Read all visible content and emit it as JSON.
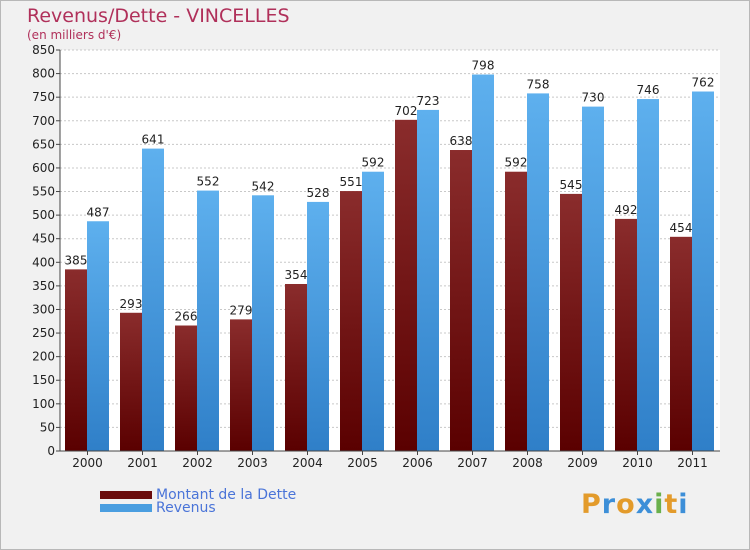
{
  "title": "Revenus/Dette - VINCELLES",
  "subtitle": "(en milliers d'€)",
  "colors": {
    "dette": "#6b0c0c",
    "revenus": "#4a9ee0",
    "title": "#b0305a",
    "legend_text": "#4a74d8"
  },
  "legend": {
    "dette_label": "Montant de la Dette",
    "revenus_label": "Revenus"
  },
  "logo": {
    "text": "Proxiti"
  },
  "chart_data": {
    "type": "bar",
    "title": "Revenus/Dette - VINCELLES",
    "subtitle": "(en milliers d'€)",
    "xlabel": "",
    "ylabel": "",
    "categories": [
      "2000",
      "2001",
      "2002",
      "2003",
      "2004",
      "2005",
      "2006",
      "2007",
      "2008",
      "2009",
      "2010",
      "2011"
    ],
    "series": [
      {
        "name": "Montant de la Dette",
        "values": [
          385,
          293,
          266,
          279,
          354,
          551,
          702,
          638,
          592,
          545,
          492,
          454
        ]
      },
      {
        "name": "Revenus",
        "values": [
          487,
          641,
          552,
          542,
          528,
          592,
          723,
          798,
          758,
          730,
          746,
          762
        ]
      }
    ],
    "ylim": [
      0,
      850
    ],
    "yticks": [
      0,
      50,
      100,
      150,
      200,
      250,
      300,
      350,
      400,
      450,
      500,
      550,
      600,
      650,
      700,
      750,
      800,
      850
    ],
    "grid": true,
    "legend_position": "bottom-left"
  }
}
